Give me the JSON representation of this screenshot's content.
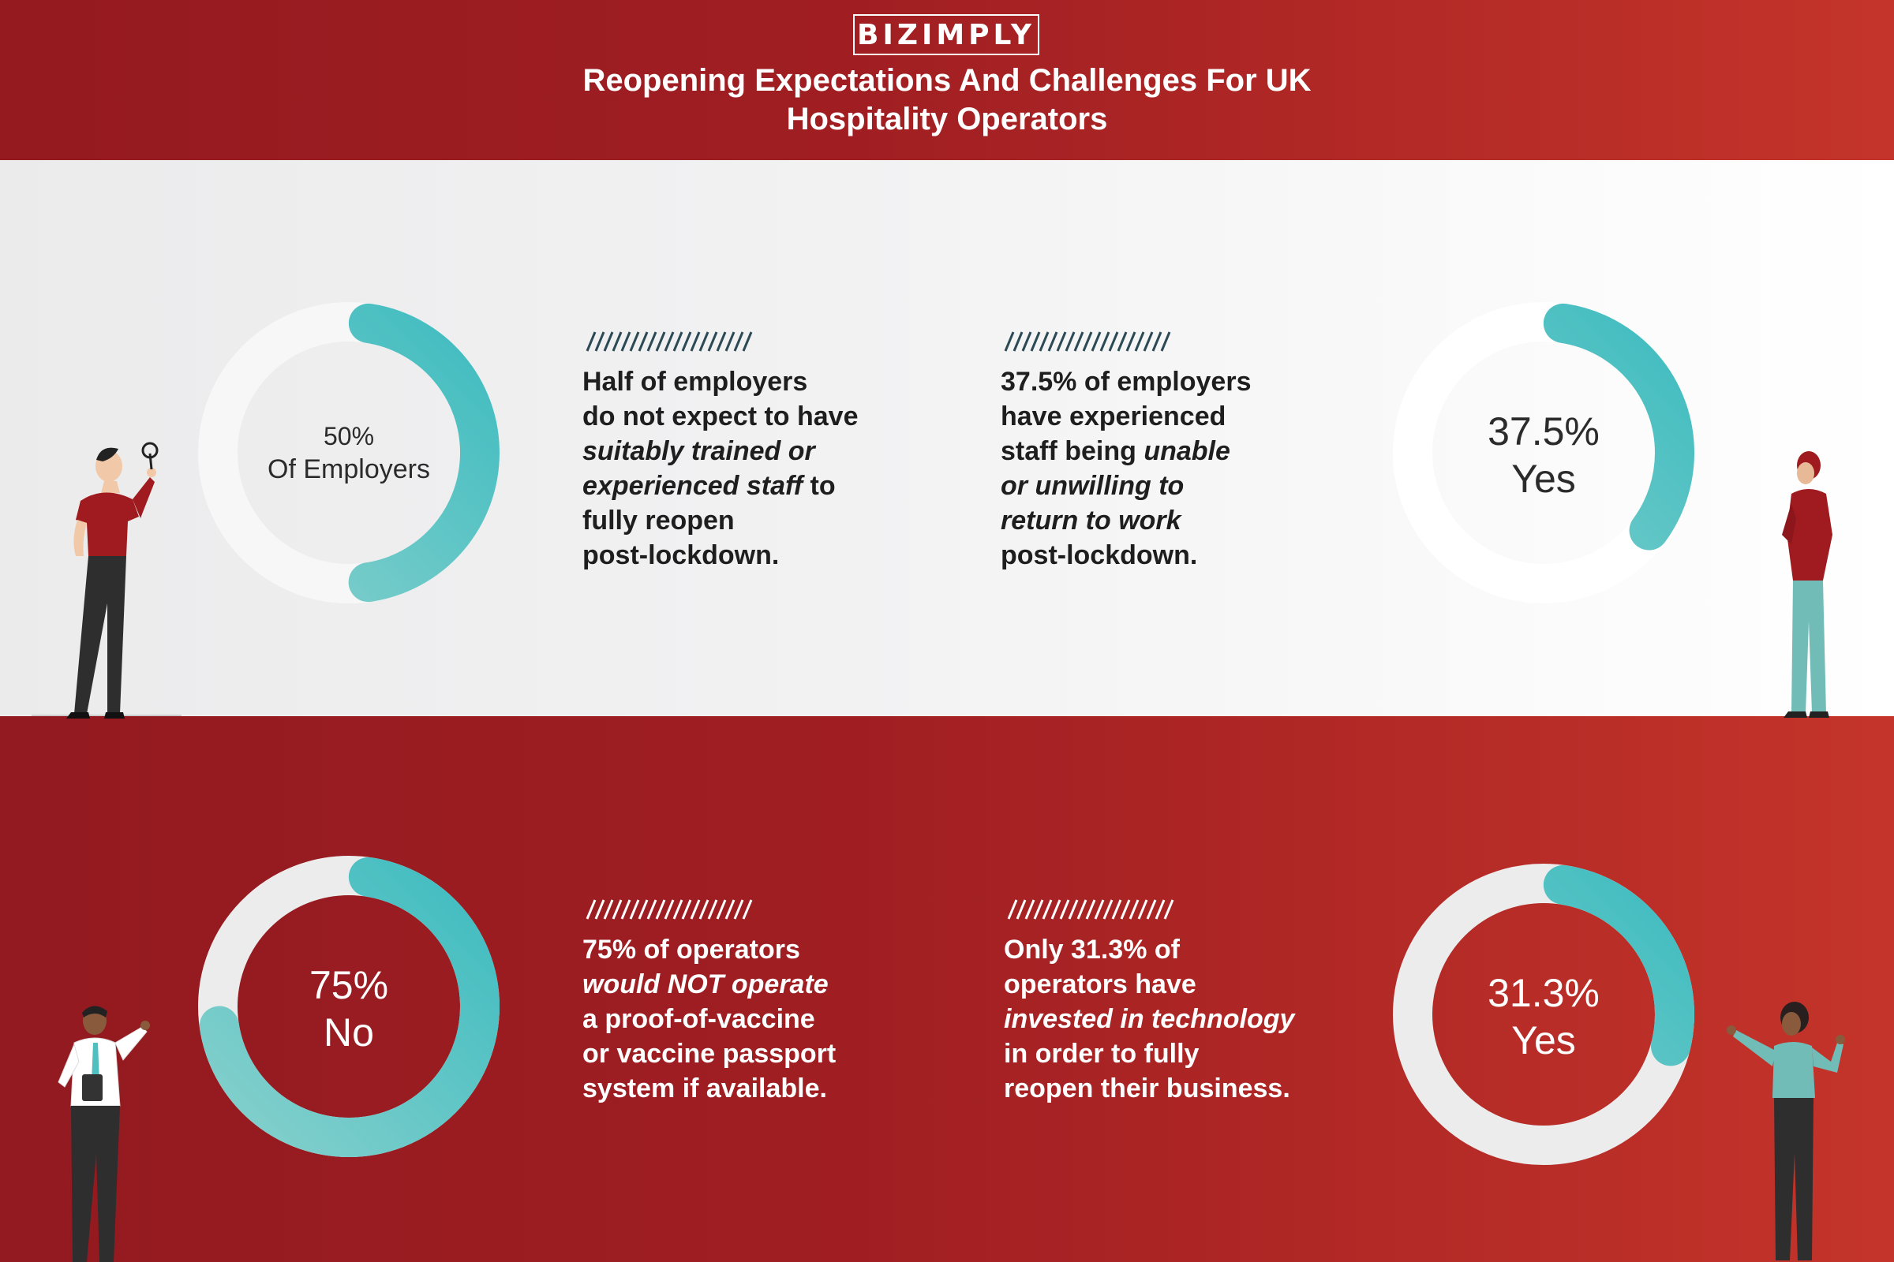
{
  "header": {
    "logo": "BIZIMPLY",
    "title_line1": "Reopening Expectations And Challenges For UK",
    "title_line2": "Hospitality Operators"
  },
  "colors": {
    "brand_red": "#a01e22",
    "teal": "#4fbfbf",
    "track_light": "#f7f7f8",
    "track_on_red": "#ececec"
  },
  "chart_data": [
    {
      "type": "pie",
      "style": "donut",
      "values": [
        50,
        50
      ],
      "highlight": 50,
      "label_value": "50%",
      "label_text": "Of Employers"
    },
    {
      "type": "pie",
      "style": "donut",
      "values": [
        37.5,
        62.5
      ],
      "highlight": 37.5,
      "label_value": "37.5%",
      "label_text": "Yes"
    },
    {
      "type": "pie",
      "style": "donut",
      "values": [
        75,
        25
      ],
      "highlight": 75,
      "label_value": "75%",
      "label_text": "No"
    },
    {
      "type": "pie",
      "style": "donut",
      "values": [
        31.3,
        68.7
      ],
      "highlight": 31.3,
      "label_value": "31.3%",
      "label_text": "Yes"
    }
  ],
  "stats": [
    {
      "lines": [
        [
          "Half of employers",
          ""
        ],
        [
          "do not expect to have",
          ""
        ],
        [
          "",
          "suitably trained or"
        ],
        [
          "",
          "experienced staff",
          " to"
        ],
        [
          "fully reopen",
          ""
        ],
        [
          "post-lockdown.",
          ""
        ]
      ]
    },
    {
      "lines": [
        [
          "37.5% of employers",
          ""
        ],
        [
          "have experienced",
          ""
        ],
        [
          "staff being ",
          "unable"
        ],
        [
          "",
          "or unwilling to"
        ],
        [
          "",
          "return to work"
        ],
        [
          "post-lockdown.",
          ""
        ]
      ]
    },
    {
      "lines": [
        [
          "75% of operators",
          ""
        ],
        [
          "",
          "would NOT operate"
        ],
        [
          "a proof-of-vaccine",
          ""
        ],
        [
          "or vaccine passport",
          ""
        ],
        [
          "system if available.",
          ""
        ]
      ]
    },
    {
      "lines": [
        [
          "Only 31.3% of",
          ""
        ],
        [
          "operators have",
          ""
        ],
        [
          "",
          "invested in technology"
        ],
        [
          "in order to fully",
          ""
        ],
        [
          "reopen their business.",
          ""
        ]
      ]
    }
  ]
}
